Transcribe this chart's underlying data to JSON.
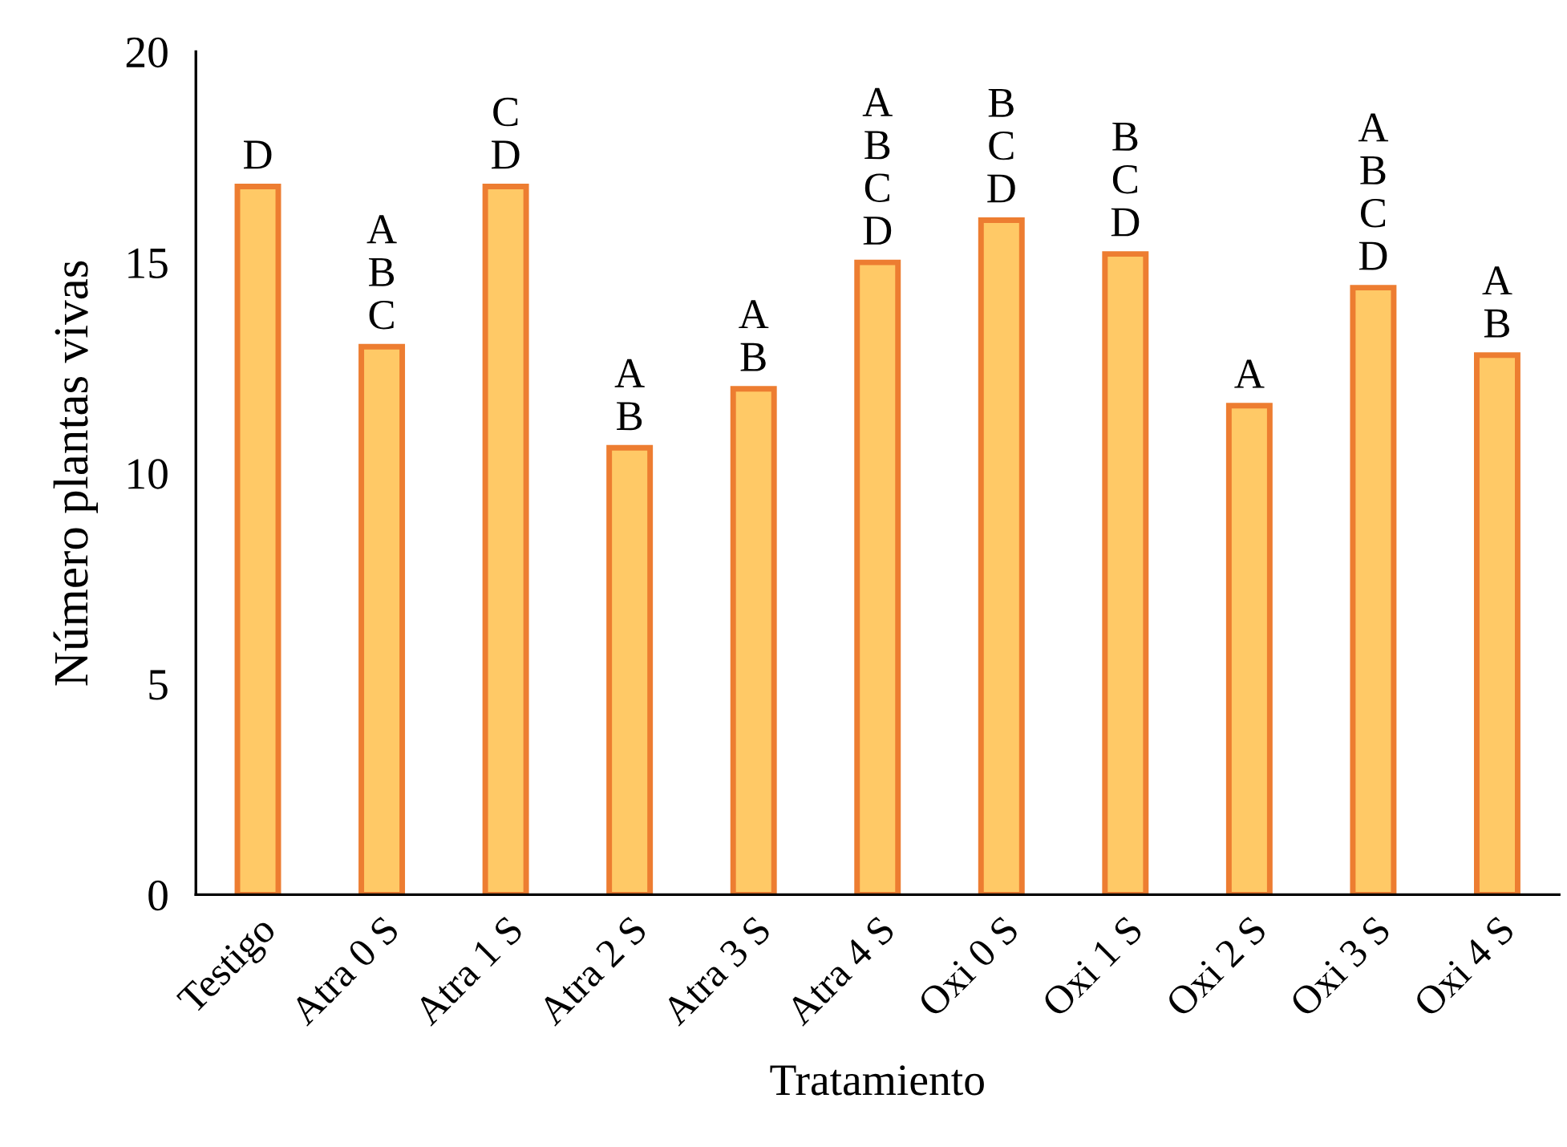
{
  "chart_data": {
    "type": "bar",
    "xlabel": "Tratamiento",
    "ylabel": "Número plantas vivas",
    "categories": [
      "Testigo",
      "Atra 0 S",
      "Atra 1 S",
      "Atra 2 S",
      "Atra 3 S",
      "Atra 4 S",
      "Oxi 0 S",
      "Oxi 1 S",
      "Oxi 2 S",
      "Oxi 3 S",
      "Oxi 4 S"
    ],
    "values": [
      16.8,
      13.0,
      16.8,
      10.6,
      12.0,
      15.0,
      16.0,
      15.2,
      11.6,
      14.4,
      12.8
    ],
    "color": "#ffc966",
    "ylim": [
      0,
      20
    ],
    "yticks": [
      0,
      5,
      10,
      15,
      20
    ],
    "grid": false,
    "legend": false,
    "annotations": [
      {
        "text": "D",
        "x": "Testigo",
        "y": 16.8
      },
      {
        "text": "A\nB\nC",
        "x": "Atra 0 S",
        "y": 13.0
      },
      {
        "text": "C\nD",
        "x": "Atra 1 S",
        "y": 16.8
      },
      {
        "text": "A\nB",
        "x": "Atra 2 S",
        "y": 10.6
      },
      {
        "text": "A\nB",
        "x": "Atra 3 S",
        "y": 12.0
      },
      {
        "text": "A\nB\nC\nD",
        "x": "Atra 4 S",
        "y": 15.0
      },
      {
        "text": "B\nC\nD",
        "x": "Oxi 0 S",
        "y": 16.0
      },
      {
        "text": "B\nC\nD",
        "x": "Oxi 1 S",
        "y": 15.2
      },
      {
        "text": "A",
        "x": "Oxi 2 S",
        "y": 11.6
      },
      {
        "text": "A\nB\nC\nD",
        "x": "Oxi 3 S",
        "y": 14.4
      },
      {
        "text": "A\nB",
        "x": "Oxi 4 S",
        "y": 12.8
      }
    ]
  }
}
